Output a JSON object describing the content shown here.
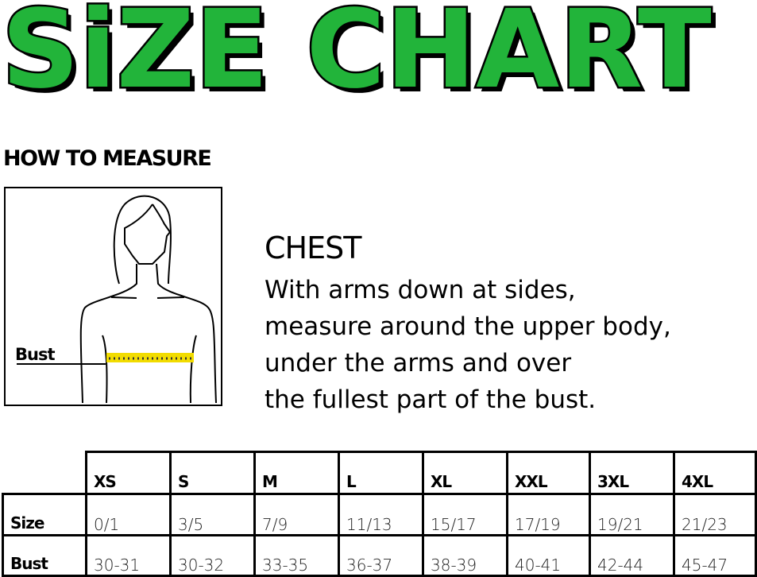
{
  "title": "SiZE CHART",
  "how_to_measure": "HOW TO MEASURE",
  "figure": {
    "label": "Bust",
    "tape_color": "#f2dc00"
  },
  "chest": {
    "title": "CHEST",
    "lines": [
      "With arms down at sides,",
      "measure around the upper body,",
      "under the arms and over",
      "the fullest part of the bust."
    ]
  },
  "table": {
    "columns": [
      "XS",
      "S",
      "M",
      "L",
      "XL",
      "XXL",
      "3XL",
      "4XL"
    ],
    "rows": [
      {
        "label": "Size",
        "values": [
          "0/1",
          "3/5",
          "7/9",
          "11/13",
          "15/17",
          "17/19",
          "19/21",
          "21/23"
        ]
      },
      {
        "label": "Bust",
        "values": [
          "30-31",
          "30-32",
          "33-35",
          "36-37",
          "38-39",
          "40-41",
          "42-44",
          "45-47"
        ]
      }
    ]
  },
  "colors": {
    "title_green": "#22b43a"
  }
}
